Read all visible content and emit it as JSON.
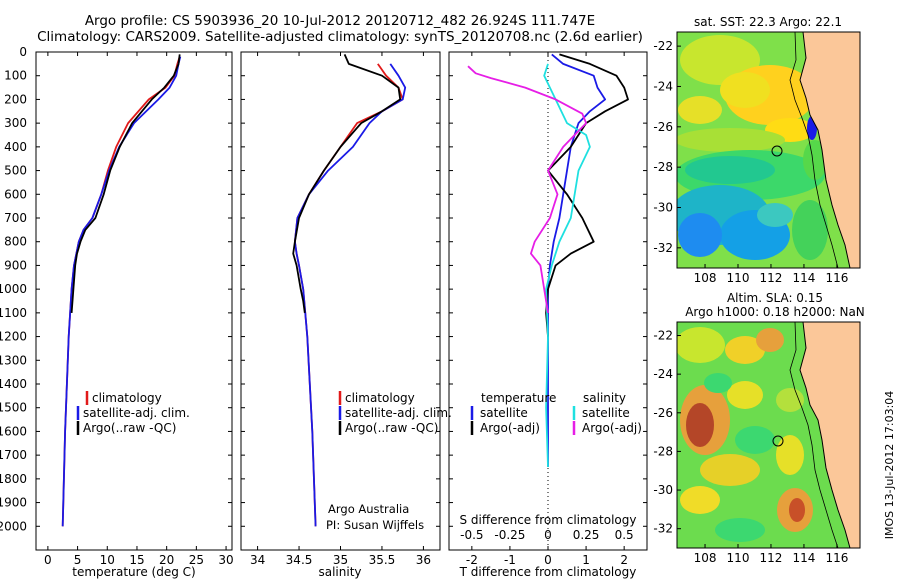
{
  "header": {
    "line1": "Argo profile: CS 5903936_20 10-Jul-2012 20120712_482 26.924S 111.747E",
    "line2": "Climatology: CARS2009. Satellite-adjusted climatology: synTS_20120708.nc (2.6d earlier)"
  },
  "colors": {
    "climatology": "#e11a1a",
    "satellite": "#1a1ae6",
    "argo": "#000000",
    "cyan": "#1ee0e0",
    "magenta": "#e61ee6",
    "land": "#fbc799"
  },
  "chart_data": [
    {
      "type": "line",
      "id": "temperature",
      "xlabel": "temperature (deg C)",
      "ylabel": "",
      "xlim": [
        -2,
        31
      ],
      "ylim": [
        2100,
        0
      ],
      "xticks": [
        0,
        5,
        10,
        15,
        20,
        25,
        30
      ],
      "yticks": [
        0,
        100,
        200,
        300,
        400,
        500,
        600,
        700,
        800,
        900,
        1000,
        1100,
        1200,
        1300,
        1400,
        1500,
        1600,
        1700,
        1800,
        1900,
        2000
      ],
      "legend": [
        "climatology",
        "satellite-adj. clim.",
        "Argo(..raw -QC)"
      ],
      "legend_position": "lower-center",
      "series": [
        {
          "name": "climatology",
          "color_key": "climatology",
          "x": [
            22.2,
            21.8,
            21.3,
            19.8,
            17.0,
            13.5,
            11.5,
            10.1,
            9.0,
            7.5,
            6.0,
            5.2,
            4.8,
            4.4,
            4.0,
            3.5,
            2.9,
            2.5
          ],
          "y": [
            20,
            50,
            100,
            150,
            200,
            300,
            400,
            500,
            600,
            700,
            750,
            800,
            850,
            900,
            1000,
            1200,
            1600,
            2000
          ]
        },
        {
          "name": "satellite-adj. clim.",
          "color_key": "satellite",
          "x": [
            22.3,
            22.0,
            21.6,
            20.5,
            18.6,
            14.5,
            12.0,
            10.3,
            9.0,
            7.5,
            6.0,
            5.2,
            4.8,
            4.4,
            4.0,
            3.5,
            2.9,
            2.5
          ],
          "y": [
            20,
            50,
            100,
            150,
            200,
            300,
            400,
            500,
            600,
            700,
            750,
            800,
            850,
            900,
            1000,
            1200,
            1600,
            2000
          ]
        },
        {
          "name": "Argo(..raw -QC)",
          "color_key": "argo",
          "x": [
            22.2,
            22.0,
            21.2,
            19.6,
            17.5,
            14.2,
            12.1,
            10.5,
            9.4,
            8.0,
            6.3,
            5.5,
            4.9,
            4.6,
            4.3,
            4.0
          ],
          "y": [
            10,
            50,
            100,
            150,
            200,
            300,
            400,
            500,
            600,
            700,
            750,
            800,
            850,
            900,
            1000,
            1100
          ]
        }
      ]
    },
    {
      "type": "line",
      "id": "salinity",
      "xlabel": "salinity",
      "xlim": [
        33.8,
        36.2
      ],
      "ylim": [
        2100,
        0
      ],
      "xticks": [
        34,
        34.5,
        35,
        35.5,
        36
      ],
      "legend": [
        "climatology",
        "satellite-adj. clim.",
        "Argo(..raw -QC)"
      ],
      "legend_position": "lower-right",
      "annotations": [
        "Argo Australia",
        "PI: Susan Wijffels"
      ],
      "series": [
        {
          "name": "climatology",
          "color_key": "climatology",
          "x": [
            35.45,
            35.55,
            35.7,
            35.75,
            35.5,
            35.2,
            35.0,
            34.8,
            34.62,
            34.48,
            34.45,
            34.47,
            34.5,
            34.55,
            34.6,
            34.66,
            34.7
          ],
          "y": [
            50,
            100,
            150,
            200,
            250,
            300,
            400,
            500,
            600,
            700,
            800,
            850,
            900,
            1000,
            1200,
            1600,
            2000
          ]
        },
        {
          "name": "satellite-adj. clim.",
          "color_key": "satellite",
          "x": [
            35.6,
            35.7,
            35.78,
            35.75,
            35.5,
            35.35,
            35.15,
            34.85,
            34.62,
            34.48,
            34.45,
            34.47,
            34.5,
            34.55,
            34.6,
            34.66,
            34.7
          ],
          "y": [
            50,
            100,
            150,
            200,
            250,
            300,
            400,
            500,
            600,
            700,
            800,
            850,
            900,
            1000,
            1200,
            1600,
            2000
          ]
        },
        {
          "name": "Argo(..raw -QC)",
          "color_key": "argo",
          "x": [
            35.05,
            35.1,
            35.5,
            35.7,
            35.72,
            35.5,
            35.25,
            35.0,
            34.8,
            34.62,
            34.5,
            34.45,
            34.43,
            34.47,
            34.52,
            34.55,
            34.57
          ],
          "y": [
            10,
            50,
            100,
            150,
            200,
            250,
            300,
            400,
            500,
            600,
            700,
            800,
            850,
            900,
            1000,
            1050,
            1100
          ]
        }
      ]
    },
    {
      "type": "line",
      "id": "difference",
      "xlabel": "T difference from climatology",
      "xlabel_top": "S difference from climatology",
      "xlim": [
        -2.6,
        2.6
      ],
      "ylim": [
        2100,
        0
      ],
      "xticks": [
        -2,
        -1,
        0,
        1,
        2
      ],
      "xticks_top": [
        "-0.5",
        "-0.25",
        "0",
        "0.25",
        "0.5"
      ],
      "legend_left": [
        "temperature",
        "satellite",
        "Argo(-adj)"
      ],
      "legend_right": [
        "salinity",
        "satellite",
        "Argo(-adj)"
      ],
      "series": [
        {
          "name": "temperature satellite",
          "color_key": "satellite",
          "x": [
            0.1,
            0.4,
            1.2,
            1.3,
            1.5,
            1.1,
            0.8,
            0.6,
            0.5,
            0.4,
            0.3,
            0.15,
            0.05,
            0.0,
            0.0,
            0.0
          ],
          "y": [
            10,
            50,
            100,
            150,
            200,
            250,
            300,
            400,
            500,
            600,
            700,
            800,
            900,
            1000,
            1500,
            1750
          ]
        },
        {
          "name": "temperature Argo(-adj)",
          "color_key": "argo",
          "x": [
            0.3,
            1.1,
            1.8,
            2.0,
            2.1,
            1.5,
            1.0,
            0.6,
            0.0,
            0.5,
            0.9,
            1.2,
            0.6,
            0.2,
            0.0,
            -0.05,
            0.0
          ],
          "y": [
            10,
            50,
            100,
            150,
            200,
            250,
            300,
            400,
            500,
            600,
            700,
            800,
            850,
            900,
            1000,
            1100,
            1200
          ]
        },
        {
          "name": "salinity satellite",
          "color_key": "cyan",
          "x": [
            0.0,
            -0.1,
            0.05,
            0.2,
            0.5,
            1.0,
            1.1,
            0.8,
            0.6,
            0.3,
            0.1,
            -0.05,
            0.0,
            -0.05,
            0.0
          ],
          "y": [
            50,
            100,
            150,
            200,
            300,
            350,
            400,
            500,
            700,
            800,
            900,
            1000,
            1200,
            1500,
            1750
          ]
        },
        {
          "name": "salinity Argo(-adj)",
          "color_key": "magenta",
          "x": [
            -2.1,
            -1.9,
            -1.5,
            -0.6,
            0.2,
            0.9,
            1.0,
            0.4,
            0.0,
            0.25,
            0.05,
            -0.35,
            -0.45,
            -0.2,
            -0.1,
            0.0
          ],
          "y": [
            60,
            90,
            110,
            150,
            200,
            260,
            300,
            400,
            500,
            600,
            700,
            800,
            850,
            900,
            1000,
            1100
          ]
        }
      ]
    }
  ],
  "maps": [
    {
      "id": "sst-map",
      "title": "sat. SST: 22.3  Argo: 22.1",
      "xticks": [
        "108",
        "110",
        "112",
        "114",
        "116"
      ],
      "yticks": [
        "-22",
        "-24",
        "-26",
        "-28",
        "-30",
        "-32"
      ]
    },
    {
      "id": "sla-map",
      "title_line1": "Altim. SLA: 0.15",
      "title_line2": "Argo h1000: 0.18 h2000: NaN",
      "xticks": [
        "108",
        "110",
        "112",
        "114",
        "116"
      ],
      "yticks": [
        "-22",
        "-24",
        "-26",
        "-28",
        "-30",
        "-32"
      ]
    }
  ],
  "footer": {
    "timestamp": "IMOS 13-Jul-2012 17:03:04"
  }
}
